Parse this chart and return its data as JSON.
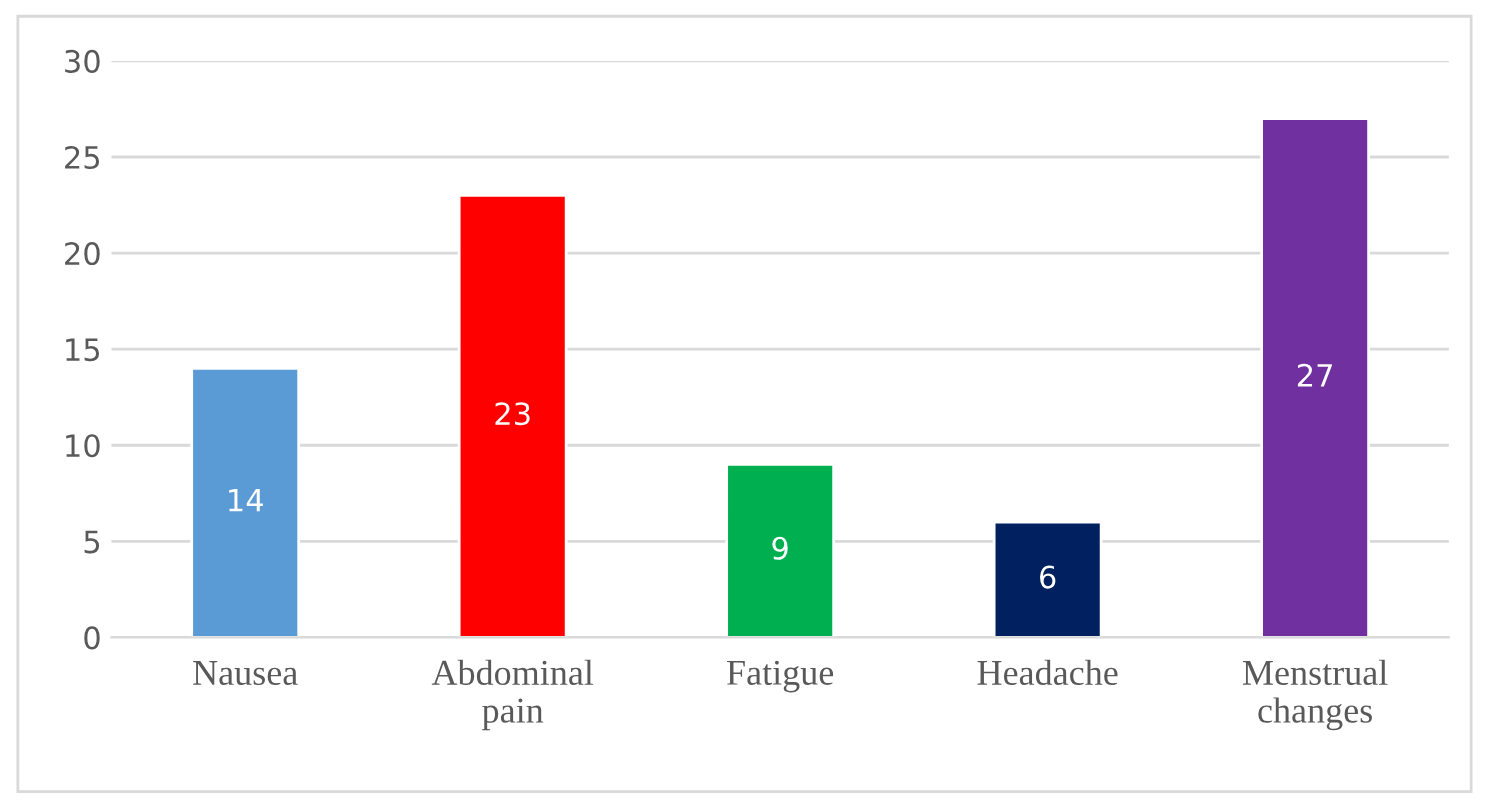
{
  "chart_data": {
    "type": "bar",
    "categories": [
      "Nausea",
      "Abdominal\npain",
      "Fatigue",
      "Headache",
      "Menstrual\nchanges"
    ],
    "values": [
      14,
      23,
      9,
      6,
      27
    ],
    "colors": [
      "#5b9bd5",
      "#ff0000",
      "#00b050",
      "#002060",
      "#7030a0"
    ],
    "ylim": [
      0,
      30
    ],
    "yticks": [
      0,
      5,
      10,
      15,
      20,
      25,
      30
    ],
    "grid": "y",
    "data_labels": true,
    "legend": false
  }
}
